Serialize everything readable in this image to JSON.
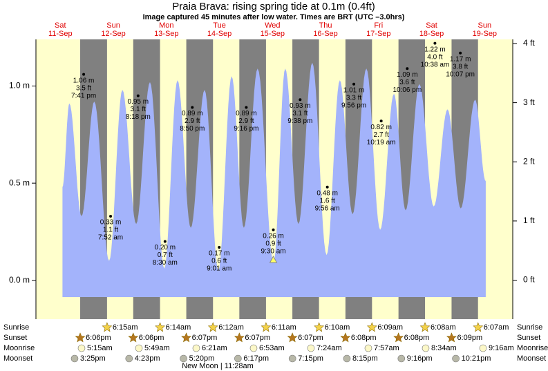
{
  "chart_data": {
    "type": "area",
    "title": "Praia Brava: rising  spring tide at 0.1m (0.4ft)",
    "subtitle": "Image captured 45 minutes after low water. Times are BRT (UTC –3.0hrs)",
    "days": [
      {
        "weekday": "Sat",
        "date": "11-Sep"
      },
      {
        "weekday": "Sun",
        "date": "12-Sep"
      },
      {
        "weekday": "Mon",
        "date": "13-Sep"
      },
      {
        "weekday": "Tue",
        "date": "14-Sep"
      },
      {
        "weekday": "Wed",
        "date": "15-Sep"
      },
      {
        "weekday": "Thu",
        "date": "16-Sep"
      },
      {
        "weekday": "Fri",
        "date": "17-Sep"
      },
      {
        "weekday": "Sat",
        "date": "18-Sep"
      },
      {
        "weekday": "Sun",
        "date": "19-Sep"
      }
    ],
    "x": [
      0.42,
      0.55,
      0.78,
      1.02,
      1.3,
      1.55,
      1.81,
      2.07,
      2.34,
      2.59,
      2.84,
      3.1,
      3.36,
      3.61,
      3.84,
      4.1,
      4.4,
      4.62,
      4.87,
      5.13,
      5.4,
      5.65,
      5.89,
      6.15,
      6.41,
      6.67,
      6.89,
      7.15,
      7.42,
      7.68,
      7.93,
      8.2,
      8.4
    ],
    "values": [
      0.48,
      0.91,
      0.33,
      0.92,
      0.1,
      0.98,
      0.29,
      1.02,
      0.06,
      1.03,
      0.27,
      0.98,
      0.05,
      1.05,
      0.27,
      1.09,
      0.09,
      1.09,
      0.29,
      1.12,
      0.13,
      1.03,
      0.34,
      1.09,
      0.26,
      0.96,
      0.36,
      1.01,
      0.38,
      0.88,
      0.37,
      0.93,
      0.51
    ],
    "color": "#a3b3fb",
    "xlim": [
      -0.08,
      8.91
    ],
    "ylim": [
      -0.2,
      1.24
    ],
    "yticks": [
      {
        "value": 0,
        "label": "0.0 m"
      },
      {
        "value": 0.5,
        "label": "0.5 m"
      },
      {
        "value": 1,
        "label": "1.0 m"
      }
    ],
    "y2lim": [
      -0.66,
      4.07
    ],
    "y2ticks": [
      {
        "value": 0,
        "label": "0 ft"
      },
      {
        "value": 1,
        "label": "1 ft"
      },
      {
        "value": 2,
        "label": "2 ft"
      },
      {
        "value": 3,
        "label": "3 ft"
      },
      {
        "value": 4,
        "label": "4 ft"
      }
    ],
    "extremes": [
      {
        "value": 1.06,
        "label": "1.06 m",
        "ft": "3.5 ft",
        "time": "7:41 pm"
      },
      {
        "value": 0.33,
        "label": "0.33 m",
        "ft": "1.1 ft",
        "time": "7:52 am"
      },
      {
        "value": 0.95,
        "label": "0.95 m",
        "ft": "3.1 ft",
        "time": "8:18 pm"
      },
      {
        "value": 0.2,
        "label": "0.20 m",
        "ft": "0.7 ft",
        "time": "8:30 am"
      },
      {
        "value": 0.89,
        "label": "0.89 m",
        "ft": "2.9 ft",
        "time": "8:50 pm"
      },
      {
        "value": 0.17,
        "label": "0.17 m",
        "ft": "0.6 ft",
        "time": "9:01 am"
      },
      {
        "value": 0.89,
        "label": "0.89 m",
        "ft": "2.9 ft",
        "time": "9:16 pm"
      },
      {
        "value": 0.26,
        "label": "0.26 m",
        "ft": "0.9 ft",
        "time": "9:30 am"
      },
      {
        "value": 0.93,
        "label": "0.93 m",
        "ft": "3.1 ft",
        "time": "9:38 pm"
      },
      {
        "value": 0.48,
        "label": "0.48 m",
        "ft": "1.6 ft",
        "time": "9:56 am"
      },
      {
        "value": 1.01,
        "label": "1.01 m",
        "ft": "3.3 ft",
        "time": "9:56 pm"
      },
      {
        "value": 0.82,
        "label": "0.82 m",
        "ft": "2.7 ft",
        "time": "10:19 am"
      },
      {
        "value": 1.09,
        "label": "1.09 m",
        "ft": "3.6 ft",
        "time": "10:06 pm"
      },
      {
        "value": 1.22,
        "label": "1.22 m",
        "ft": "4.0 ft",
        "time": "10:38 am"
      },
      {
        "value": 1.17,
        "label": "1.17 m",
        "ft": "3.8 ft",
        "time": "10:07 pm"
      }
    ],
    "day_color": "#ffffcc",
    "night_color": "#808080",
    "rows": {
      "sunrise": {
        "label": "Sunrise",
        "times": [
          "6:15am",
          "6:14am",
          "6:12am",
          "6:11am",
          "6:10am",
          "6:09am",
          "6:08am",
          "6:07am"
        ]
      },
      "sunset": {
        "label": "Sunset",
        "times": [
          "6:06pm",
          "6:06pm",
          "6:07pm",
          "6:07pm",
          "6:07pm",
          "6:08pm",
          "6:08pm",
          "6:09pm"
        ]
      },
      "moonrise": {
        "label": "Moonrise",
        "times": [
          "5:15am",
          "5:49am",
          "6:21am",
          "6:53am",
          "7:24am",
          "7:57am",
          "8:34am",
          "9:16am"
        ]
      },
      "moonset": {
        "label": "Moonset",
        "times": [
          "3:25pm",
          "4:23pm",
          "5:20pm",
          "6:17pm",
          "7:15pm",
          "8:15pm",
          "9:16pm",
          "10:21pm"
        ]
      }
    },
    "moon_phase": "New Moon | 11:28am"
  }
}
